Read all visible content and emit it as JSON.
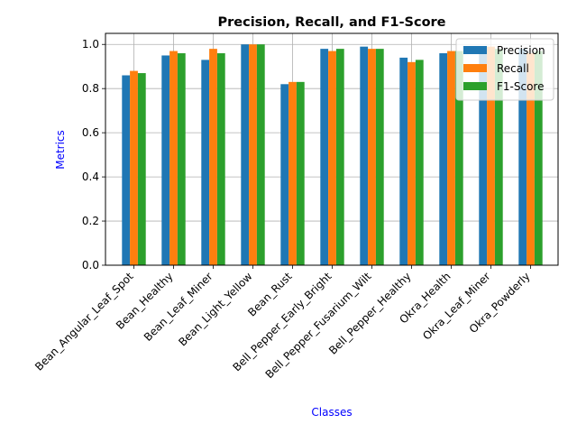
{
  "chart_data": {
    "type": "bar",
    "title": "Precision, Recall, and F1-Score",
    "xlabel": "Classes",
    "ylabel": "Metrics",
    "ylim": [
      0,
      1.05
    ],
    "yticks": [
      "0.0",
      "0.2",
      "0.4",
      "0.6",
      "0.8",
      "1.0"
    ],
    "grid": true,
    "legend_position": "top-right",
    "categories": [
      "Bean_Angular_Leaf_Spot",
      "Bean_Healthy",
      "Bean_Leaf_Miner",
      "Bean_Light_Yellow",
      "Bean_Rust",
      "Bell_Pepper_Early_Bright",
      "Bell_Pepper_Fusarium_Wilt",
      "Bell_Pepper_Healthy",
      "Okra_Health",
      "Okra_Leaf_Miner",
      "Okra_Powderly"
    ],
    "series": [
      {
        "name": "Precision",
        "color": "#1f77b4",
        "values": [
          0.86,
          0.95,
          0.93,
          1.0,
          0.82,
          0.98,
          0.99,
          0.94,
          0.96,
          0.98,
          0.98
        ]
      },
      {
        "name": "Recall",
        "color": "#ff7f0e",
        "values": [
          0.88,
          0.97,
          0.98,
          1.0,
          0.83,
          0.97,
          0.98,
          0.92,
          0.97,
          0.99,
          0.96
        ]
      },
      {
        "name": "F1-Score",
        "color": "#2ca02c",
        "values": [
          0.87,
          0.96,
          0.96,
          1.0,
          0.83,
          0.98,
          0.98,
          0.93,
          0.97,
          0.98,
          0.97
        ]
      }
    ]
  }
}
